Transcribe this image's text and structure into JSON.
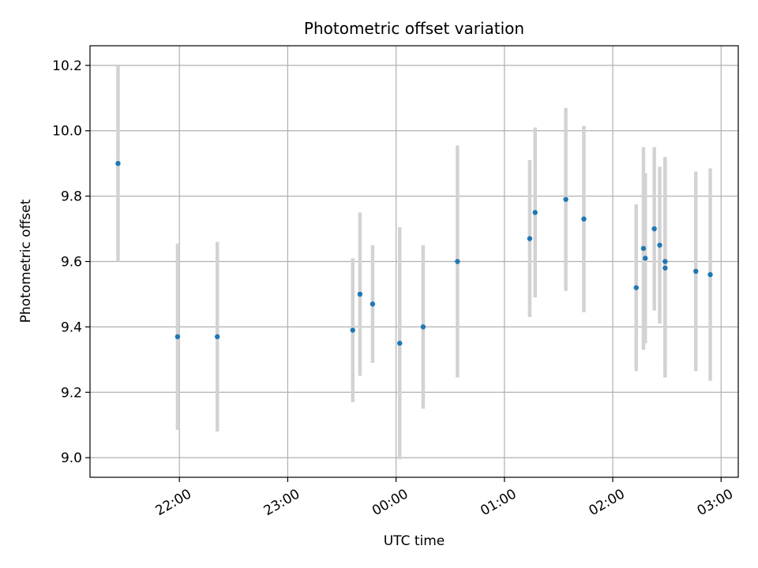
{
  "chart_data": {
    "type": "scatter",
    "title": "Photometric offset variation",
    "xlabel": "UTC time",
    "ylabel": "Photometric offset",
    "x_ticks": [
      "22:00",
      "23:00",
      "00:00",
      "01:00",
      "02:00",
      "03:00"
    ],
    "x_tick_minutes": [
      1320,
      1380,
      1440,
      1500,
      1560,
      1620
    ],
    "y_ticks": [
      "9.0",
      "9.2",
      "9.4",
      "9.6",
      "9.8",
      "10.0",
      "10.2"
    ],
    "y_tick_values": [
      9.0,
      9.2,
      9.4,
      9.6,
      9.8,
      10.0,
      10.2
    ],
    "xlim_minutes": [
      1270.5,
      1629.5
    ],
    "ylim": [
      8.94,
      10.26
    ],
    "grid": true,
    "colors": {
      "point": "#1f77b4",
      "errorbar": "#d3d3d3",
      "grid": "#b0b0b0",
      "axes": "#000000"
    },
    "points": [
      {
        "time": "21:26",
        "y": 9.9,
        "err": 0.3
      },
      {
        "time": "21:59",
        "y": 9.37,
        "err": 0.285
      },
      {
        "time": "22:21",
        "y": 9.37,
        "err": 0.29
      },
      {
        "time": "23:36",
        "y": 9.39,
        "err": 0.22
      },
      {
        "time": "23:40",
        "y": 9.5,
        "err": 0.25
      },
      {
        "time": "23:47",
        "y": 9.47,
        "err": 0.18
      },
      {
        "time": "00:02",
        "y": 9.35,
        "err": 0.355
      },
      {
        "time": "00:15",
        "y": 9.4,
        "err": 0.25
      },
      {
        "time": "00:34",
        "y": 9.6,
        "err": 0.355
      },
      {
        "time": "01:14",
        "y": 9.67,
        "err": 0.24
      },
      {
        "time": "01:17",
        "y": 9.75,
        "err": 0.26
      },
      {
        "time": "01:34",
        "y": 9.79,
        "err": 0.28
      },
      {
        "time": "01:44",
        "y": 9.73,
        "err": 0.285
      },
      {
        "time": "02:13",
        "y": 9.52,
        "err": 0.255
      },
      {
        "time": "02:17",
        "y": 9.64,
        "err": 0.31
      },
      {
        "time": "02:18",
        "y": 9.61,
        "err": 0.26
      },
      {
        "time": "02:23",
        "y": 9.7,
        "err": 0.25
      },
      {
        "time": "02:26",
        "y": 9.65,
        "err": 0.24
      },
      {
        "time": "02:29",
        "y": 9.6,
        "err": 0.32
      },
      {
        "time": "02:29",
        "y": 9.58,
        "err": 0.335
      },
      {
        "time": "02:46",
        "y": 9.57,
        "err": 0.305
      },
      {
        "time": "02:54",
        "y": 9.56,
        "err": 0.325
      }
    ]
  }
}
